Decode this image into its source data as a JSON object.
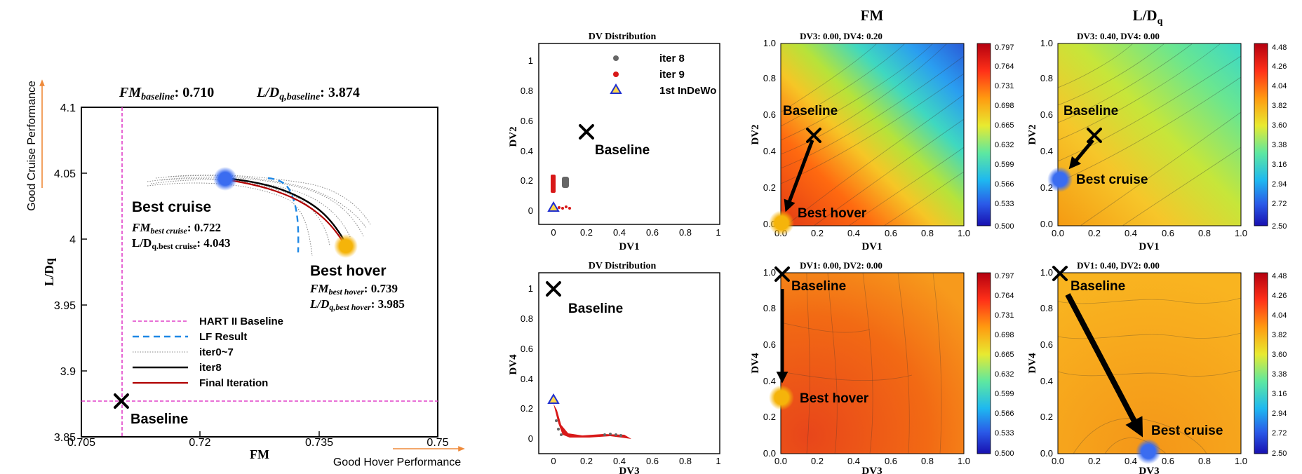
{
  "colors": {
    "baseline_line": "#e040c8",
    "lf_result": "#1e88e5",
    "iter_dotted": "#888888",
    "iter8": "#000000",
    "final_iteration": "#b00000",
    "good_arrow": "#ef8a3a",
    "best_cruise_marker": "#3a6cf0",
    "best_hover_marker": "#f5b40a",
    "iter8_scatter": "#666666",
    "iter9_scatter": "#d81818",
    "indewo_triangle": "#2030d0"
  },
  "main_plot": {
    "header_fm": "FM",
    "header_fm_sub": "baseline",
    "header_fm_value": ": 0.710",
    "header_ld": "L/D",
    "header_ld_sub": "q,baseline",
    "header_ld_value": ": 3.874",
    "good_cruise_label": "Good Cruise Performance",
    "good_hover_label": "Good Hover Performance",
    "best_cruise_title": "Best cruise",
    "best_cruise_fm_label": "FM",
    "best_cruise_fm_sub": "best cruise",
    "best_cruise_fm_value": ": 0.722",
    "best_cruise_ld_label": "L/D",
    "best_cruise_ld_sub": "q.best cruise",
    "best_cruise_ld_value": ": 4.043",
    "best_hover_title": "Best hover",
    "best_hover_fm_label": "FM",
    "best_hover_fm_sub": "best hover",
    "best_hover_fm_value": ": 0.739",
    "best_hover_ld_label": "L/D",
    "best_hover_ld_sub": "q,best hover",
    "best_hover_ld_value": ": 3.985",
    "baseline_label": "Baseline",
    "legend": [
      {
        "label": "HART II Baseline",
        "style": "dash-magenta"
      },
      {
        "label": "LF Result",
        "style": "dash-blue"
      },
      {
        "label": "iter0~7",
        "style": "dotted"
      },
      {
        "label": "iter8",
        "style": "solid-black"
      },
      {
        "label": "Final Iteration",
        "style": "solid-red"
      }
    ]
  },
  "chart_data": [
    {
      "type": "line",
      "title": "",
      "xlabel": "FM",
      "ylabel": "L/Dq",
      "xlim": [
        0.705,
        0.75
      ],
      "ylim": [
        3.85,
        4.1
      ],
      "x_ticks": [
        "0.705",
        "0.72",
        "0.735",
        "0.75"
      ],
      "y_ticks": [
        "3.85",
        "3.9",
        "3.95",
        "4",
        "4.05",
        "4.1"
      ],
      "reference_lines": {
        "hart_ii_baseline_fm": 0.7095,
        "hart_ii_baseline_ld": 3.874
      },
      "series": [
        {
          "name": "LF Result",
          "x": [
            0.7285,
            0.7305,
            0.7315,
            0.7318,
            0.732,
            0.7322
          ],
          "y": [
            4.044,
            4.043,
            4.03,
            4.0,
            3.99,
            3.99
          ]
        },
        {
          "name": "iter8",
          "x": [
            0.7225,
            0.725,
            0.728,
            0.731,
            0.734,
            0.7365,
            0.739
          ],
          "y": [
            4.043,
            4.041,
            4.036,
            4.027,
            4.016,
            4.004,
            3.99
          ]
        },
        {
          "name": "Final Iteration",
          "x": [
            0.7225,
            0.725,
            0.728,
            0.731,
            0.734,
            0.737,
            0.7392
          ],
          "y": [
            4.043,
            4.04,
            4.034,
            4.024,
            4.012,
            3.999,
            3.985
          ]
        },
        {
          "name": "iter0~7",
          "x": [
            0.713,
            0.718,
            0.724,
            0.73,
            0.736,
            0.7425
          ],
          "y": [
            4.04,
            4.042,
            4.041,
            4.035,
            4.02,
            3.995
          ]
        }
      ],
      "points": [
        {
          "name": "Best cruise",
          "x": 0.722,
          "y": 4.043
        },
        {
          "name": "Best hover",
          "x": 0.739,
          "y": 3.985
        },
        {
          "name": "Baseline",
          "x": 0.71,
          "y": 3.874
        }
      ]
    },
    {
      "type": "scatter",
      "title": "DV Distribution",
      "xlabel": "DV1",
      "ylabel": "DV2",
      "xlim": [
        -0.1,
        1.05
      ],
      "ylim": [
        -0.1,
        1.1
      ],
      "x_ticks": [
        "0",
        "0.2",
        "0.4",
        "0.6",
        "0.8",
        "1"
      ],
      "y_ticks": [
        "0",
        "0.2",
        "0.4",
        "0.6",
        "0.8",
        "1"
      ],
      "legend": [
        "iter 8",
        "iter 9",
        "1st InDeWo"
      ],
      "series": [
        {
          "name": "iter 8",
          "x": [
            0.07,
            0.08,
            0.085,
            0.09,
            0.075,
            0.08,
            0.09,
            0.07
          ],
          "y": [
            0.16,
            0.18,
            0.2,
            0.17,
            0.19,
            0.21,
            0.19,
            0.2
          ]
        },
        {
          "name": "iter 9",
          "x": [
            0.0,
            0.01,
            0.005,
            0.015,
            0.01,
            0.04,
            0.06,
            0.08,
            0.1,
            0.02
          ],
          "y": [
            0.16,
            0.2,
            0.22,
            0.24,
            0.18,
            0.02,
            0.01,
            0.02,
            0.01,
            0.03
          ]
        },
        {
          "name": "1st InDeWo",
          "x": [
            0.0
          ],
          "y": [
            0.0
          ]
        }
      ],
      "points": [
        {
          "name": "Baseline",
          "x": 0.2,
          "y": 0.52
        }
      ]
    },
    {
      "type": "heatmap",
      "title": "DV3: 0.00, DV4: 0.20",
      "column_title": "FM",
      "xlabel": "DV1",
      "ylabel": "DV2",
      "xlim": [
        0,
        1
      ],
      "ylim": [
        0,
        1
      ],
      "x_ticks": [
        "0.0",
        "0.2",
        "0.4",
        "0.6",
        "0.8",
        "1.0"
      ],
      "y_ticks": [
        "0.0",
        "0.2",
        "0.4",
        "0.6",
        "0.8",
        "1.0"
      ],
      "colorbar_ticks": [
        "0.797",
        "0.764",
        "0.731",
        "0.698",
        "0.665",
        "0.632",
        "0.599",
        "0.566",
        "0.533",
        "0.500"
      ],
      "points": [
        {
          "name": "Baseline",
          "x": 0.2,
          "y": 0.5
        },
        {
          "name": "Best hover",
          "x": 0.0,
          "y": 0.02
        }
      ]
    },
    {
      "type": "heatmap",
      "title": "DV3: 0.40, DV4: 0.00",
      "column_title": "L/Dq",
      "xlabel": "DV1",
      "ylabel": "DV2",
      "xlim": [
        0,
        1
      ],
      "ylim": [
        0,
        1
      ],
      "x_ticks": [
        "0.0",
        "0.2",
        "0.4",
        "0.6",
        "0.8",
        "1.0"
      ],
      "y_ticks": [
        "0.0",
        "0.2",
        "0.4",
        "0.6",
        "0.8",
        "1.0"
      ],
      "colorbar_ticks": [
        "4.48",
        "4.26",
        "4.04",
        "3.82",
        "3.60",
        "3.38",
        "3.16",
        "2.94",
        "2.72",
        "2.50"
      ],
      "points": [
        {
          "name": "Baseline",
          "x": 0.2,
          "y": 0.5
        },
        {
          "name": "Best cruise",
          "x": 0.0,
          "y": 0.25
        }
      ]
    },
    {
      "type": "scatter",
      "title": "DV Distribution",
      "xlabel": "DV3",
      "ylabel": "DV4",
      "xlim": [
        -0.1,
        1.05
      ],
      "ylim": [
        -0.1,
        1.1
      ],
      "x_ticks": [
        "0",
        "0.2",
        "0.4",
        "0.6",
        "0.8",
        "1"
      ],
      "y_ticks": [
        "0",
        "0.2",
        "0.4",
        "0.6",
        "0.8",
        "1"
      ],
      "series": [
        {
          "name": "iter 8",
          "x": [
            0.02,
            0.03,
            0.05,
            0.3,
            0.35,
            0.38,
            0.4,
            0.42
          ],
          "y": [
            0.12,
            0.05,
            0.02,
            0.03,
            0.04,
            0.02,
            0.03,
            0.01
          ]
        },
        {
          "name": "iter 9",
          "x": [
            0.0,
            0.01,
            0.02,
            0.03,
            0.05,
            0.08,
            0.12,
            0.18,
            0.24,
            0.3,
            0.38,
            0.45
          ],
          "y": [
            0.22,
            0.16,
            0.1,
            0.05,
            0.02,
            0.01,
            0.01,
            0.02,
            0.01,
            0.02,
            0.01,
            0.0
          ]
        },
        {
          "name": "1st InDeWo",
          "x": [
            0.0
          ],
          "y": [
            0.25
          ]
        }
      ],
      "points": [
        {
          "name": "Baseline",
          "x": 0.0,
          "y": 1.0
        }
      ]
    },
    {
      "type": "heatmap",
      "title": "DV1: 0.00, DV2: 0.00",
      "xlabel": "DV3",
      "ylabel": "DV4",
      "xlim": [
        0,
        1
      ],
      "ylim": [
        0,
        1
      ],
      "x_ticks": [
        "0.0",
        "0.2",
        "0.4",
        "0.6",
        "0.8",
        "1.0"
      ],
      "y_ticks": [
        "0.0",
        "0.2",
        "0.4",
        "0.6",
        "0.8",
        "1.0"
      ],
      "colorbar_ticks": [
        "0.797",
        "0.764",
        "0.731",
        "0.698",
        "0.665",
        "0.632",
        "0.599",
        "0.566",
        "0.533",
        "0.500"
      ],
      "points": [
        {
          "name": "Baseline",
          "x": 0.0,
          "y": 1.0
        },
        {
          "name": "Best hover",
          "x": 0.0,
          "y": 0.3
        }
      ]
    },
    {
      "type": "heatmap",
      "title": "DV1: 0.40, DV2: 0.00",
      "xlabel": "DV3",
      "ylabel": "DV4",
      "xlim": [
        0,
        1
      ],
      "ylim": [
        0,
        1
      ],
      "x_ticks": [
        "0.0",
        "0.2",
        "0.4",
        "0.6",
        "0.8",
        "1.0"
      ],
      "y_ticks": [
        "0.0",
        "0.2",
        "0.4",
        "0.6",
        "0.8",
        "1.0"
      ],
      "colorbar_ticks": [
        "4.48",
        "4.26",
        "4.04",
        "3.82",
        "3.60",
        "3.38",
        "3.16",
        "2.94",
        "2.72",
        "2.50"
      ],
      "points": [
        {
          "name": "Baseline",
          "x": 0.0,
          "y": 1.0
        },
        {
          "name": "Best cruise",
          "x": 0.5,
          "y": 0.01
        }
      ]
    }
  ]
}
